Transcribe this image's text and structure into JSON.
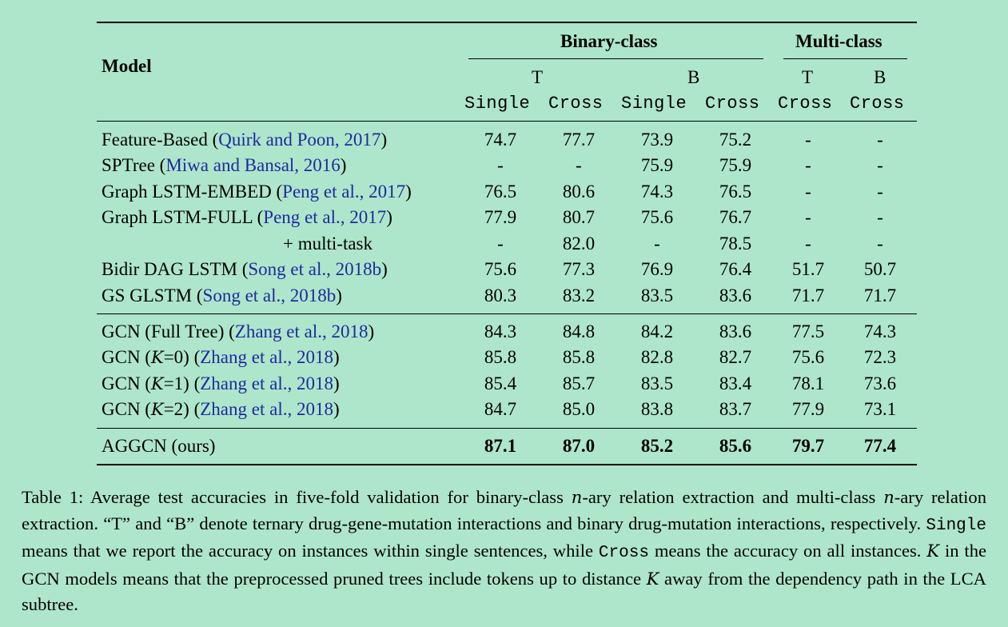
{
  "header": {
    "model_label": "Model",
    "group_binary": "Binary-class",
    "group_multi": "Multi-class",
    "sub_t": "T",
    "sub_b": "B",
    "col_single": "Single",
    "col_cross": "Cross"
  },
  "rows": [
    {
      "model": "Feature-Based",
      "cite": "Quirk and Poon, 2017",
      "values": [
        "74.7",
        "77.7",
        "73.9",
        "75.2",
        "-",
        "-"
      ]
    },
    {
      "model": "SPTree",
      "cite": "Miwa and Bansal, 2016",
      "values": [
        "-",
        "-",
        "75.9",
        "75.9",
        "-",
        "-"
      ]
    },
    {
      "model": "Graph LSTM-EMBED",
      "cite": "Peng et al., 2017",
      "values": [
        "76.5",
        "80.6",
        "74.3",
        "76.5",
        "-",
        "-"
      ]
    },
    {
      "model": "Graph LSTM-FULL",
      "cite": "Peng et al., 2017",
      "values": [
        "77.9",
        "80.7",
        "75.6",
        "76.7",
        "-",
        "-"
      ]
    },
    {
      "model": "+ multi-task",
      "cite": "",
      "values": [
        "-",
        "82.0",
        "-",
        "78.5",
        "-",
        "-"
      ]
    },
    {
      "model": "Bidir DAG LSTM",
      "cite": "Song et al., 2018b",
      "values": [
        "75.6",
        "77.3",
        "76.9",
        "76.4",
        "51.7",
        "50.7"
      ]
    },
    {
      "model": "GS GLSTM",
      "cite": "Song et al., 2018b",
      "values": [
        "80.3",
        "83.2",
        "83.5",
        "83.6",
        "71.7",
        "71.7"
      ]
    },
    {
      "model": "GCN (Full Tree)",
      "cite": "Zhang et al., 2018",
      "values": [
        "84.3",
        "84.8",
        "84.2",
        "83.6",
        "77.5",
        "74.3"
      ]
    },
    {
      "model": "GCN (K=0)",
      "cite": "Zhang et al., 2018",
      "values": [
        "85.8",
        "85.8",
        "82.8",
        "82.7",
        "75.6",
        "72.3"
      ]
    },
    {
      "model": "GCN (K=1)",
      "cite": "Zhang et al., 2018",
      "values": [
        "85.4",
        "85.7",
        "83.5",
        "83.4",
        "78.1",
        "73.6"
      ]
    },
    {
      "model": "GCN (K=2)",
      "cite": "Zhang et al., 2018",
      "values": [
        "84.7",
        "85.0",
        "83.8",
        "83.7",
        "77.9",
        "73.1"
      ]
    },
    {
      "model": "AGGCN (ours)",
      "cite": "",
      "values": [
        "87.1",
        "87.0",
        "85.2",
        "85.6",
        "79.7",
        "77.4"
      ]
    }
  ],
  "caption": {
    "label": "Table 1:",
    "p1": "Average test accuracies in five-fold validation for binary-class",
    "n": "n",
    "p2": "-ary relation extraction and multi-class",
    "p3": "-ary relation extraction. “T” and “B” denote ternary drug-gene-mutation interactions and binary drug-mutation interactions, respectively.",
    "single": "Single",
    "p4": "means that we report the accuracy on instances within single sentences, while",
    "cross": "Cross",
    "p5": "means the accuracy on all instances.",
    "k": "K",
    "p6": "in the GCN models means that the preprocessed pruned trees include tokens up to distance",
    "p7": "away from the dependency path in the LCA subtree."
  },
  "colors": {
    "background": "#aee6cb",
    "citation": "#1f2a9e",
    "text": "#000000"
  }
}
